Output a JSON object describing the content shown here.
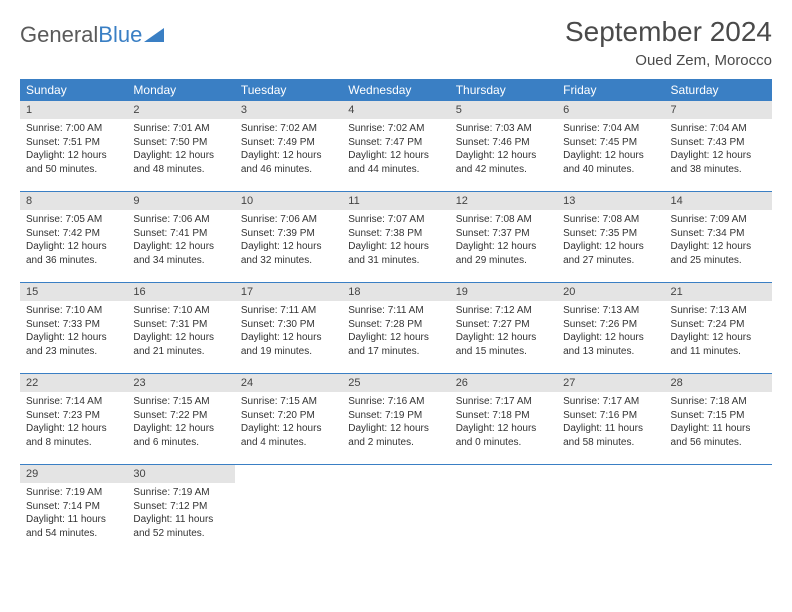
{
  "logo": {
    "text1": "General",
    "text2": "Blue"
  },
  "title": "September 2024",
  "location": "Oued Zem, Morocco",
  "colors": {
    "header_bg": "#3a7fc4",
    "header_text": "#ffffff",
    "daynum_bg": "#e4e4e4",
    "border": "#3a7fc4",
    "body_text": "#333333",
    "title_text": "#4a4a4a"
  },
  "weekdays": [
    "Sunday",
    "Monday",
    "Tuesday",
    "Wednesday",
    "Thursday",
    "Friday",
    "Saturday"
  ],
  "days": [
    {
      "n": 1,
      "sunrise": "7:00 AM",
      "sunset": "7:51 PM",
      "dh": 12,
      "dm": 50
    },
    {
      "n": 2,
      "sunrise": "7:01 AM",
      "sunset": "7:50 PM",
      "dh": 12,
      "dm": 48
    },
    {
      "n": 3,
      "sunrise": "7:02 AM",
      "sunset": "7:49 PM",
      "dh": 12,
      "dm": 46
    },
    {
      "n": 4,
      "sunrise": "7:02 AM",
      "sunset": "7:47 PM",
      "dh": 12,
      "dm": 44
    },
    {
      "n": 5,
      "sunrise": "7:03 AM",
      "sunset": "7:46 PM",
      "dh": 12,
      "dm": 42
    },
    {
      "n": 6,
      "sunrise": "7:04 AM",
      "sunset": "7:45 PM",
      "dh": 12,
      "dm": 40
    },
    {
      "n": 7,
      "sunrise": "7:04 AM",
      "sunset": "7:43 PM",
      "dh": 12,
      "dm": 38
    },
    {
      "n": 8,
      "sunrise": "7:05 AM",
      "sunset": "7:42 PM",
      "dh": 12,
      "dm": 36
    },
    {
      "n": 9,
      "sunrise": "7:06 AM",
      "sunset": "7:41 PM",
      "dh": 12,
      "dm": 34
    },
    {
      "n": 10,
      "sunrise": "7:06 AM",
      "sunset": "7:39 PM",
      "dh": 12,
      "dm": 32
    },
    {
      "n": 11,
      "sunrise": "7:07 AM",
      "sunset": "7:38 PM",
      "dh": 12,
      "dm": 31
    },
    {
      "n": 12,
      "sunrise": "7:08 AM",
      "sunset": "7:37 PM",
      "dh": 12,
      "dm": 29
    },
    {
      "n": 13,
      "sunrise": "7:08 AM",
      "sunset": "7:35 PM",
      "dh": 12,
      "dm": 27
    },
    {
      "n": 14,
      "sunrise": "7:09 AM",
      "sunset": "7:34 PM",
      "dh": 12,
      "dm": 25
    },
    {
      "n": 15,
      "sunrise": "7:10 AM",
      "sunset": "7:33 PM",
      "dh": 12,
      "dm": 23
    },
    {
      "n": 16,
      "sunrise": "7:10 AM",
      "sunset": "7:31 PM",
      "dh": 12,
      "dm": 21
    },
    {
      "n": 17,
      "sunrise": "7:11 AM",
      "sunset": "7:30 PM",
      "dh": 12,
      "dm": 19
    },
    {
      "n": 18,
      "sunrise": "7:11 AM",
      "sunset": "7:28 PM",
      "dh": 12,
      "dm": 17
    },
    {
      "n": 19,
      "sunrise": "7:12 AM",
      "sunset": "7:27 PM",
      "dh": 12,
      "dm": 15
    },
    {
      "n": 20,
      "sunrise": "7:13 AM",
      "sunset": "7:26 PM",
      "dh": 12,
      "dm": 13
    },
    {
      "n": 21,
      "sunrise": "7:13 AM",
      "sunset": "7:24 PM",
      "dh": 12,
      "dm": 11
    },
    {
      "n": 22,
      "sunrise": "7:14 AM",
      "sunset": "7:23 PM",
      "dh": 12,
      "dm": 8
    },
    {
      "n": 23,
      "sunrise": "7:15 AM",
      "sunset": "7:22 PM",
      "dh": 12,
      "dm": 6
    },
    {
      "n": 24,
      "sunrise": "7:15 AM",
      "sunset": "7:20 PM",
      "dh": 12,
      "dm": 4
    },
    {
      "n": 25,
      "sunrise": "7:16 AM",
      "sunset": "7:19 PM",
      "dh": 12,
      "dm": 2
    },
    {
      "n": 26,
      "sunrise": "7:17 AM",
      "sunset": "7:18 PM",
      "dh": 12,
      "dm": 0
    },
    {
      "n": 27,
      "sunrise": "7:17 AM",
      "sunset": "7:16 PM",
      "dh": 11,
      "dm": 58
    },
    {
      "n": 28,
      "sunrise": "7:18 AM",
      "sunset": "7:15 PM",
      "dh": 11,
      "dm": 56
    },
    {
      "n": 29,
      "sunrise": "7:19 AM",
      "sunset": "7:14 PM",
      "dh": 11,
      "dm": 54
    },
    {
      "n": 30,
      "sunrise": "7:19 AM",
      "sunset": "7:12 PM",
      "dh": 11,
      "dm": 52
    }
  ],
  "labels": {
    "sunrise": "Sunrise:",
    "sunset": "Sunset:",
    "daylight_prefix": "Daylight:",
    "hours": "hours",
    "and": "and",
    "minutes": "minutes."
  }
}
